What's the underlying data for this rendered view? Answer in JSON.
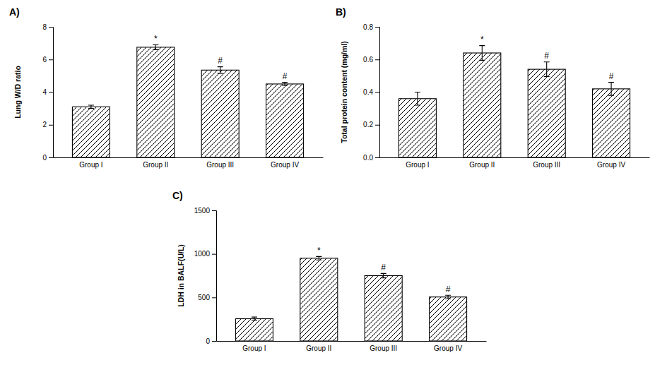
{
  "chart_data": [
    {
      "type": "bar",
      "title": "A)",
      "ylabel": "Lung W/D ratio",
      "categories": [
        "Group I",
        "Group II",
        "Group III",
        "Group IV"
      ],
      "values": [
        3.1,
        6.75,
        5.35,
        4.5
      ],
      "errors": [
        0.1,
        0.15,
        0.2,
        0.1
      ],
      "annotations": [
        null,
        "*",
        "#",
        "#"
      ],
      "color": "#ffffff",
      "ylim": [
        0,
        8
      ],
      "yticks": [
        0,
        2,
        4,
        6,
        8
      ]
    },
    {
      "type": "bar",
      "title": "B)",
      "ylabel": "Total protein content (mg/ml)",
      "categories": [
        "Group I",
        "Group II",
        "Group III",
        "Group IV"
      ],
      "values": [
        0.36,
        0.64,
        0.54,
        0.42
      ],
      "errors": [
        0.04,
        0.045,
        0.045,
        0.04
      ],
      "annotations": [
        null,
        "*",
        "#",
        "#"
      ],
      "color": "#ffffff",
      "ylim": [
        0.0,
        0.8
      ],
      "yticks": [
        {
          "value": 0.0,
          "label": "0.0"
        },
        0.2,
        0.4,
        0.6,
        0.8
      ]
    },
    {
      "type": "bar",
      "title": "C)",
      "ylabel": "LDH in BALF(U/L)",
      "categories": [
        "Group I",
        "Group II",
        "Group III",
        "Group IV"
      ],
      "values": [
        255,
        950,
        750,
        505
      ],
      "errors": [
        20,
        20,
        25,
        20
      ],
      "annotations": [
        null,
        "*",
        "#",
        "#"
      ],
      "color": "#ffffff",
      "ylim": [
        0,
        1500
      ],
      "yticks": [
        0,
        500,
        1000,
        1500
      ]
    }
  ]
}
